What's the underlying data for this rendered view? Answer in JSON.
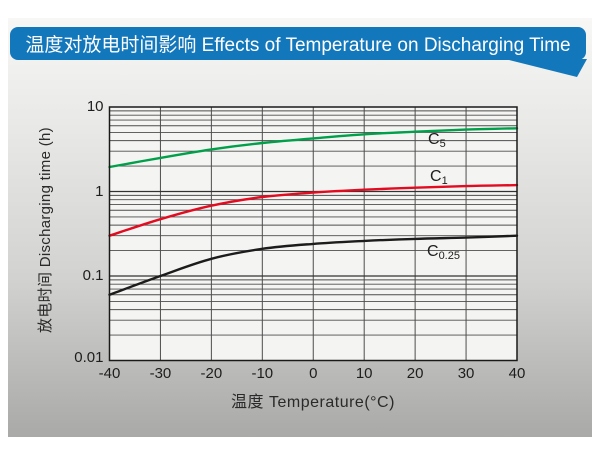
{
  "header": {
    "title": "温度对放电时间影响 Effects of Temperature on Discharging Time",
    "bg_color": "#1377bc"
  },
  "chart_data": {
    "type": "line",
    "x": [
      -40,
      -30,
      -20,
      -10,
      0,
      10,
      20,
      30,
      40
    ],
    "series": [
      {
        "name": "C5",
        "label_main": "C",
        "label_sub": "5",
        "color": "#00a04b",
        "values": [
          1.95,
          2.5,
          3.15,
          3.75,
          4.25,
          4.75,
          5.1,
          5.4,
          5.6
        ]
      },
      {
        "name": "C1",
        "label_main": "C",
        "label_sub": "1",
        "color": "#e30b20",
        "values": [
          0.3,
          0.47,
          0.68,
          0.86,
          0.97,
          1.05,
          1.11,
          1.16,
          1.19
        ]
      },
      {
        "name": "C0.25",
        "label_main": "C",
        "label_sub": "0.25",
        "color": "#1c1c1c",
        "values": [
          0.06,
          0.1,
          0.16,
          0.21,
          0.24,
          0.26,
          0.275,
          0.285,
          0.3
        ]
      }
    ],
    "xlabel": "温度  Temperature(°C)",
    "ylabel": "放电时间 Discharging time (h)",
    "x_ticks": [
      "-40",
      "-30",
      "-20",
      "-10",
      "0",
      "10",
      "20",
      "30",
      "40"
    ],
    "y_ticks": [
      "10",
      "1",
      "0.1",
      "0.01"
    ],
    "y_tick_values": [
      10,
      1,
      0.1,
      0.01
    ],
    "y_scale": "log",
    "xlim": [
      -40,
      40
    ],
    "ylim": [
      0.01,
      10
    ],
    "grid": true,
    "legend_position": "inline-labels",
    "colors": {
      "grid_minor": "#4d4d4d",
      "grid_major": "#333333",
      "plot_border": "#1a1a1a",
      "plot_bg": "#f4f4f2"
    }
  }
}
